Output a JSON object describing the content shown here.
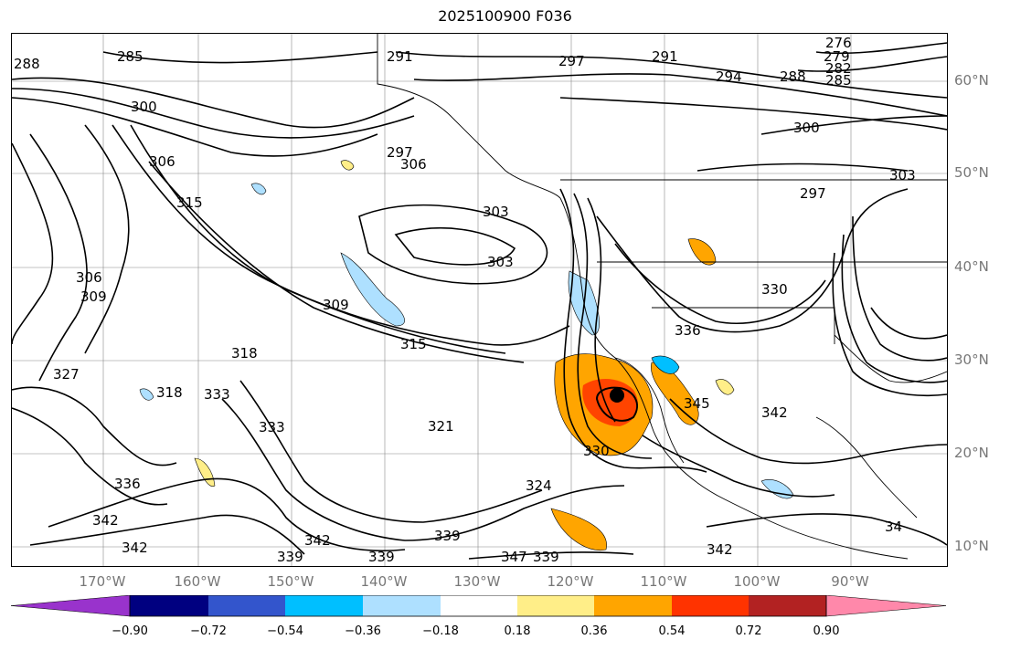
{
  "title": "2025100900 F036",
  "lat_labels": [
    "60°N",
    "50°N",
    "40°N",
    "30°N",
    "20°N",
    "10°N"
  ],
  "lon_labels": [
    "170°W",
    "160°W",
    "150°W",
    "140°W",
    "130°W",
    "120°W",
    "110°W",
    "100°W",
    "90°W"
  ],
  "contour_labels": [
    "288",
    "285",
    "291",
    "297",
    "291",
    "294",
    "276",
    "279",
    "282",
    "285",
    "288",
    "300",
    "306",
    "300",
    "306",
    "303",
    "303",
    "297",
    "303",
    "306",
    "309",
    "309",
    "330",
    "315",
    "318",
    "318",
    "327",
    "333",
    "333",
    "321",
    "342",
    "342",
    "336",
    "336",
    "339",
    "339",
    "339",
    "347",
    "339",
    "324",
    "330",
    "342",
    "345",
    "342",
    "342",
    "34",
    "315",
    "297"
  ],
  "colorbar": {
    "ticks": [
      "−0.90",
      "−0.72",
      "−0.54",
      "−0.36",
      "−0.18",
      "0.18",
      "0.36",
      "0.54",
      "0.72",
      "0.90"
    ],
    "colors": [
      "#9933cc",
      "#000080",
      "#3355cc",
      "#00bfff",
      "#aee0ff",
      "#ffffff",
      "#ffee88",
      "#ffa500",
      "#ff3300",
      "#b22222",
      "#ff88aa",
      "#ff88aa"
    ]
  }
}
